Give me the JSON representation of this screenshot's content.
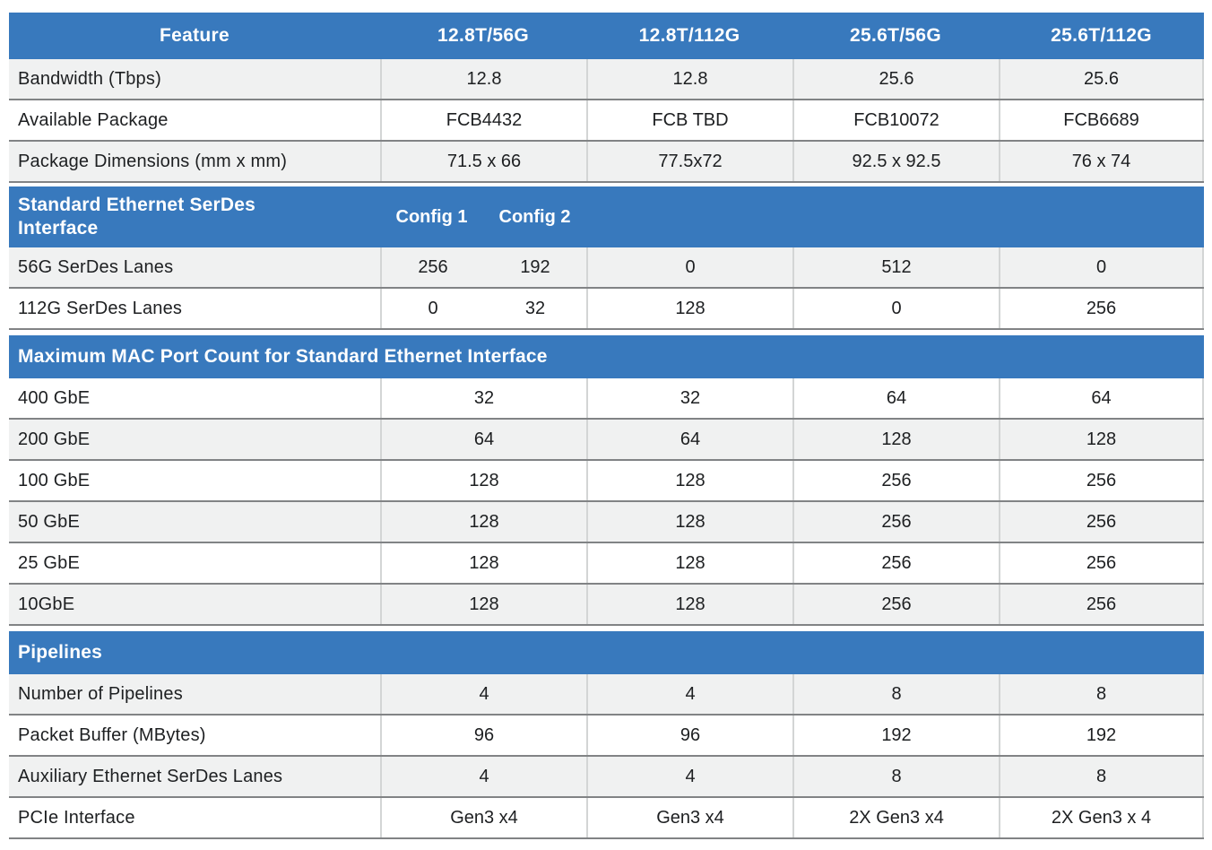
{
  "colors": {
    "header_blue": "#3879BD",
    "row_shade": "#F0F1F1",
    "row_white": "#FFFFFF",
    "header_text": "#FFFFFF",
    "body_text": "#1D1F21",
    "border_dark": "#818385",
    "border_light": "#D3D5D5"
  },
  "table": {
    "columns": [
      "Feature",
      "12.8T/56G",
      "12.8T/112G",
      "25.6T/56G",
      "25.6T/112G"
    ],
    "sections": [
      {
        "header": null,
        "rows": [
          {
            "feature": "Bandwidth (Tbps)",
            "shade": true,
            "values": [
              "12.8",
              "12.8",
              "25.6",
              "25.6"
            ]
          },
          {
            "feature": "Available Package",
            "shade": false,
            "values": [
              "FCB4432",
              "FCB TBD",
              "FCB10072",
              "FCB6689"
            ]
          },
          {
            "feature": "Package Dimensions (mm x mm)",
            "shade": true,
            "values": [
              "71.5 x 66",
              "77.5x72",
              "92.5 x 92.5",
              "76 x 74"
            ]
          }
        ]
      },
      {
        "header": {
          "title": "Standard Ethernet SerDes Interface",
          "config_labels": [
            "Config 1",
            "Config 2"
          ]
        },
        "rows": [
          {
            "feature": "56G SerDes Lanes",
            "shade": true,
            "values": [
              [
                "256",
                "192"
              ],
              "0",
              "512",
              "0"
            ]
          },
          {
            "feature": "112G SerDes Lanes",
            "shade": false,
            "values": [
              [
                "0",
                "32"
              ],
              "128",
              "0",
              "256"
            ]
          }
        ]
      },
      {
        "header": {
          "title": "Maximum MAC Port Count for Standard Ethernet Interface"
        },
        "rows": [
          {
            "feature": "400 GbE",
            "shade": false,
            "values": [
              "32",
              "32",
              "64",
              "64"
            ]
          },
          {
            "feature": "200 GbE",
            "shade": true,
            "values": [
              "64",
              "64",
              "128",
              "128"
            ]
          },
          {
            "feature": "100 GbE",
            "shade": false,
            "values": [
              "128",
              "128",
              "256",
              "256"
            ]
          },
          {
            "feature": "50 GbE",
            "shade": true,
            "values": [
              "128",
              "128",
              "256",
              "256"
            ]
          },
          {
            "feature": "25 GbE",
            "shade": false,
            "values": [
              "128",
              "128",
              "256",
              "256"
            ]
          },
          {
            "feature": "10GbE",
            "shade": true,
            "values": [
              "128",
              "128",
              "256",
              "256"
            ]
          }
        ]
      },
      {
        "header": {
          "title": "Pipelines"
        },
        "rows": [
          {
            "feature": "Number of Pipelines",
            "shade": true,
            "values": [
              "4",
              "4",
              "8",
              "8"
            ]
          },
          {
            "feature": "Packet Buffer (MBytes)",
            "shade": false,
            "values": [
              "96",
              "96",
              "192",
              "192"
            ]
          },
          {
            "feature": "Auxiliary Ethernet SerDes Lanes",
            "shade": true,
            "values": [
              "4",
              "4",
              "8",
              "8"
            ]
          },
          {
            "feature": "PCIe Interface",
            "shade": false,
            "values": [
              "Gen3 x4",
              "Gen3 x4",
              "2X Gen3 x4",
              "2X Gen3 x 4"
            ]
          }
        ]
      }
    ]
  }
}
